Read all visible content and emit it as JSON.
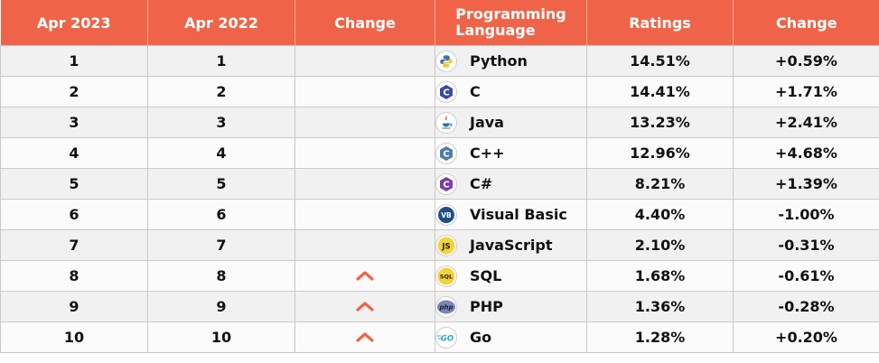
{
  "table": {
    "headers": {
      "apr2023": "Apr 2023",
      "apr2022": "Apr 2022",
      "change": "Change",
      "language_line1": "Programming",
      "language_line2": "Language",
      "ratings": "Ratings",
      "rating_change": "Change"
    },
    "rows": [
      {
        "rank2023": "1",
        "rank2022": "1",
        "change": "",
        "language": "Python",
        "icon": "python-icon",
        "ratings": "14.51%",
        "rating_change": "+0.59%"
      },
      {
        "rank2023": "2",
        "rank2022": "2",
        "change": "",
        "language": "C",
        "icon": "c-icon",
        "ratings": "14.41%",
        "rating_change": "+1.71%"
      },
      {
        "rank2023": "3",
        "rank2022": "3",
        "change": "",
        "language": "Java",
        "icon": "java-icon",
        "ratings": "13.23%",
        "rating_change": "+2.41%"
      },
      {
        "rank2023": "4",
        "rank2022": "4",
        "change": "",
        "language": "C++",
        "icon": "cpp-icon",
        "ratings": "12.96%",
        "rating_change": "+4.68%"
      },
      {
        "rank2023": "5",
        "rank2022": "5",
        "change": "",
        "language": "C#",
        "icon": "csharp-icon",
        "ratings": "8.21%",
        "rating_change": "+1.39%"
      },
      {
        "rank2023": "6",
        "rank2022": "6",
        "change": "",
        "language": "Visual Basic",
        "icon": "visual-basic-icon",
        "ratings": "4.40%",
        "rating_change": "-1.00%"
      },
      {
        "rank2023": "7",
        "rank2022": "7",
        "change": "",
        "language": "JavaScript",
        "icon": "javascript-icon",
        "ratings": "2.10%",
        "rating_change": "-0.31%"
      },
      {
        "rank2023": "8",
        "rank2022": "8",
        "change": "up",
        "language": "SQL",
        "icon": "sql-icon",
        "ratings": "1.68%",
        "rating_change": "-0.61%"
      },
      {
        "rank2023": "9",
        "rank2022": "9",
        "change": "up",
        "language": "PHP",
        "icon": "php-icon",
        "ratings": "1.36%",
        "rating_change": "-0.28%"
      },
      {
        "rank2023": "10",
        "rank2022": "10",
        "change": "up",
        "language": "Go",
        "icon": "go-icon",
        "ratings": "1.28%",
        "rating_change": "+0.20%"
      }
    ],
    "colors": {
      "header_bg": "#ef6448",
      "header_text": "#ffffff",
      "arrow": "#ef6448",
      "row_alt": "#f1f1f1"
    },
    "icon_text": {
      "visual_basic": "VB",
      "javascript": "JS",
      "sql": "SQL",
      "php": "php",
      "go": "GO"
    }
  }
}
